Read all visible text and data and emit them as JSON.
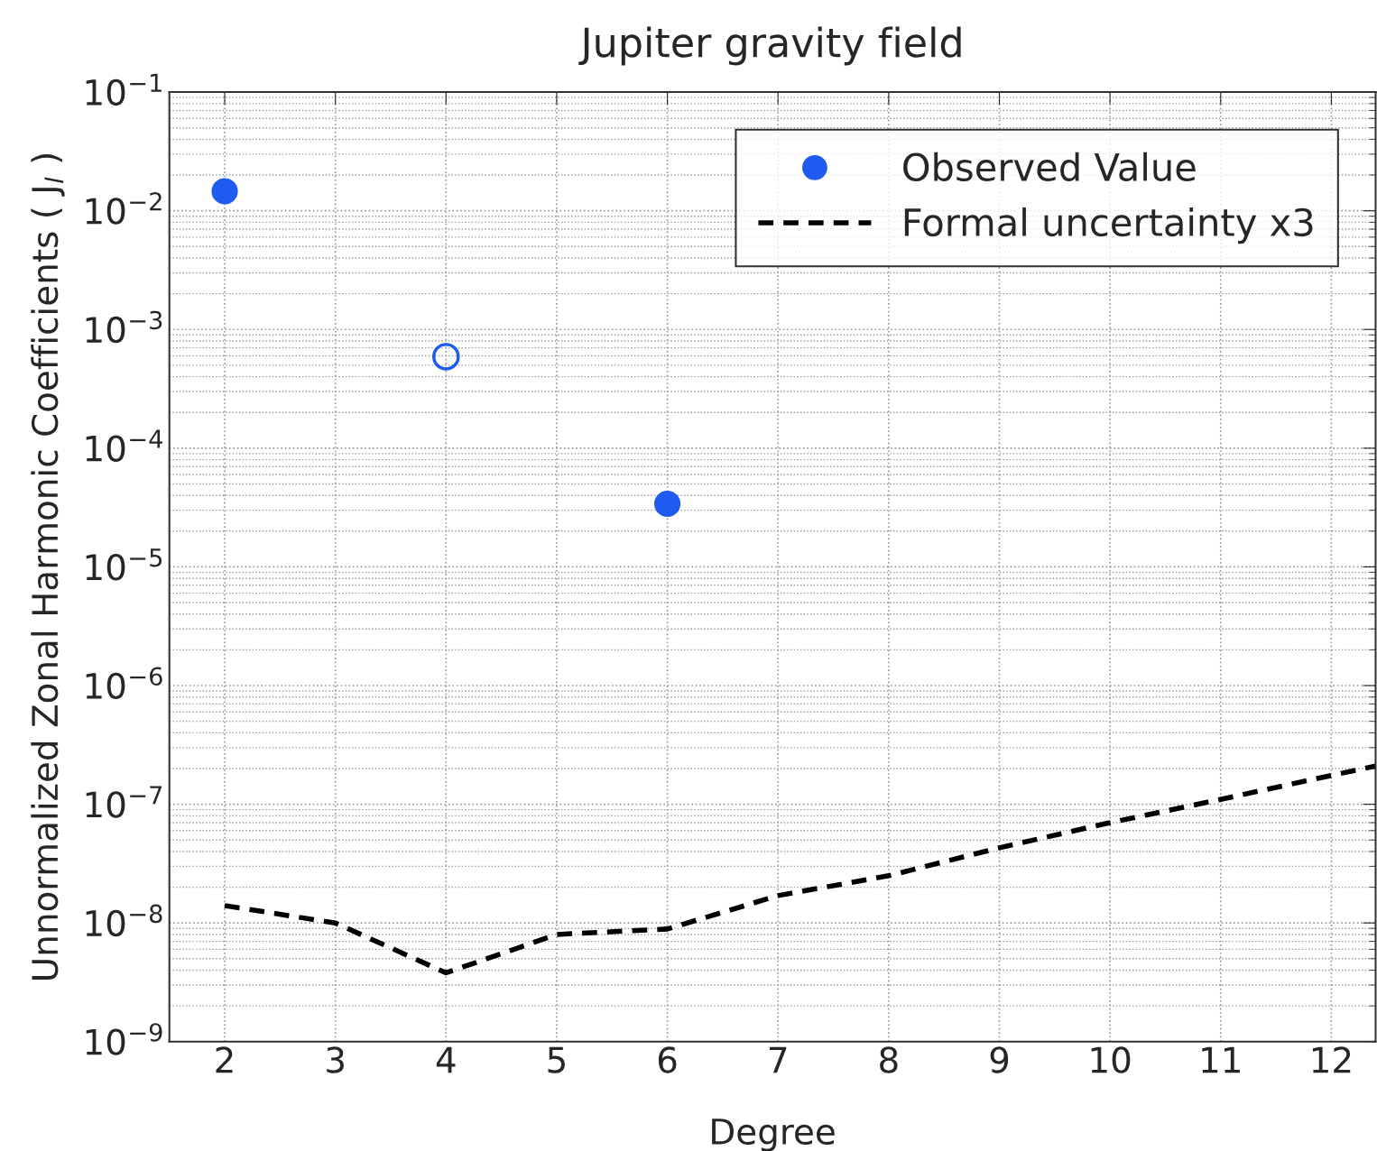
{
  "chart_data": {
    "type": "scatter",
    "title": "Jupiter gravity field",
    "xlabel": "Degree",
    "ylabel": "Unnormalized Zonal Harmonic Coefficients ( J$_{l}$ )",
    "log": "y",
    "grid": true,
    "legend": "top right",
    "xlim": [
      1.5,
      12.4
    ],
    "xticks": [
      2,
      3,
      4,
      5,
      6,
      7,
      8,
      9,
      10,
      11,
      12
    ],
    "ylim": [
      1e-09,
      0.1
    ],
    "yticks": [
      {
        "value": 1e-09,
        "label": "10$^{−9}$"
      },
      {
        "value": 1e-08,
        "label": "10$^{−8}$"
      },
      {
        "value": 1e-07,
        "label": "10$^{−7}$"
      },
      {
        "value": 1e-06,
        "label": "10$^{−6}$"
      },
      {
        "value": 1e-05,
        "label": "10$^{−5}$"
      },
      {
        "value": 0.0001,
        "label": "10$^{−4}$"
      },
      {
        "value": 0.001,
        "label": "10$^{−3}$"
      },
      {
        "value": 0.01,
        "label": "10$^{−2}$"
      },
      {
        "value": 0.1,
        "label": "10$^{−1}$"
      }
    ],
    "series": [
      {
        "name": "Observed Value",
        "marker": "circle",
        "color": "#1f5bf0",
        "x": [
          2,
          6
        ],
        "values": [
          0.0146,
          3.4e-05
        ]
      },
      {
        "marker": "circle",
        "color": "#1f5bf0",
        "x": [
          4
        ],
        "values": [
          0.00059
        ]
      },
      {
        "name": "Formal uncertainty x3",
        "type": "line",
        "line_style": "dashed",
        "marker": "none",
        "color": "#000000",
        "x": [
          2,
          3,
          4,
          5,
          6,
          7,
          8,
          9,
          10,
          11,
          12,
          12.4
        ],
        "values": [
          1.4e-08,
          1e-08,
          3.8e-09,
          8e-09,
          8.9e-09,
          1.7e-08,
          2.5e-08,
          4.3e-08,
          7e-08,
          1.1e-07,
          1.75e-07,
          2.1e-07
        ]
      }
    ]
  }
}
